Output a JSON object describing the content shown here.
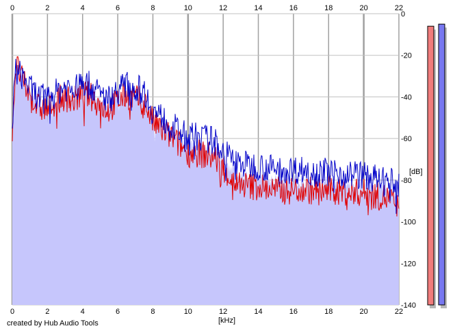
{
  "credit": "created by Hub Audio Tools",
  "chart_data": {
    "type": "area",
    "xlabel": "[kHz]",
    "ylabel": "[dB]",
    "xlim": [
      0,
      22
    ],
    "ylim": [
      -140,
      0
    ],
    "x_ticks": [
      "0",
      "2",
      "4",
      "6",
      "8",
      "10",
      "12",
      "14",
      "16",
      "18",
      "20",
      "22"
    ],
    "y_ticks": [
      "0",
      "-20",
      "-40",
      "-60",
      "-80",
      "-100",
      "-120",
      "-140"
    ],
    "grid": true,
    "colors": {
      "fill": "#c6c6fc",
      "left": "#e00000",
      "right": "#0000c8"
    },
    "envelope": {
      "x": [
        0,
        0.2,
        0.4,
        0.6,
        0.8,
        1,
        1.5,
        2,
        2.5,
        3,
        3.5,
        4,
        4.5,
        5,
        5.5,
        6,
        6.5,
        7,
        7.5,
        8,
        8.5,
        9,
        9.5,
        10,
        10.5,
        11,
        11.5,
        12,
        12.5,
        13,
        13.5,
        14,
        14.5,
        15,
        15.5,
        16,
        16.5,
        17,
        17.5,
        18,
        18.5,
        19,
        19.5,
        20,
        20.5,
        21,
        21.5,
        22
      ],
      "y": [
        -52,
        -28,
        -30,
        -32,
        -35,
        -38,
        -43,
        -44,
        -41,
        -38,
        -40,
        -36,
        -38,
        -42,
        -44,
        -40,
        -37,
        -39,
        -40,
        -50,
        -53,
        -56,
        -60,
        -63,
        -63,
        -64,
        -65,
        -70,
        -75,
        -77,
        -78,
        -78,
        -79,
        -80,
        -80,
        -80,
        -80,
        -81,
        -81,
        -81,
        -81,
        -82,
        -82,
        -82,
        -83,
        -84,
        -85,
        -86
      ]
    },
    "series": [
      {
        "channel": "left",
        "x": [
          0,
          0.2,
          0.4,
          0.6,
          0.8,
          1,
          1.5,
          2,
          2.5,
          3,
          3.5,
          4,
          4.5,
          5,
          5.5,
          6,
          6.5,
          7,
          7.5,
          8,
          8.5,
          9,
          9.5,
          10,
          10.5,
          11,
          11.5,
          12,
          12.5,
          13,
          13.5,
          14,
          14.5,
          15,
          15.5,
          16,
          16.5,
          17,
          17.5,
          18,
          18.5,
          19,
          19.5,
          20,
          20.5,
          21,
          21.5,
          22
        ],
        "y": [
          -55,
          -25,
          -28,
          -33,
          -36,
          -40,
          -45,
          -46,
          -42,
          -40,
          -42,
          -38,
          -40,
          -44,
          -46,
          -42,
          -39,
          -41,
          -42,
          -52,
          -56,
          -59,
          -63,
          -67,
          -67,
          -68,
          -69,
          -74,
          -80,
          -82,
          -83,
          -83,
          -84,
          -85,
          -85,
          -85,
          -84,
          -85,
          -85,
          -85,
          -85,
          -86,
          -86,
          -86,
          -87,
          -88,
          -89,
          -94
        ]
      },
      {
        "channel": "right",
        "x": [
          0,
          0.2,
          0.4,
          0.6,
          0.8,
          1,
          1.5,
          2,
          2.5,
          3,
          3.5,
          4,
          4.5,
          5,
          5.5,
          6,
          6.5,
          7,
          7.5,
          8,
          8.5,
          9,
          9.5,
          10,
          10.5,
          11,
          11.5,
          12,
          12.5,
          13,
          13.5,
          14,
          14.5,
          15,
          15.5,
          16,
          16.5,
          17,
          17.5,
          18,
          18.5,
          19,
          19.5,
          20,
          20.5,
          21,
          21.5,
          22
        ],
        "y": [
          -50,
          -27,
          -29,
          -30,
          -33,
          -36,
          -40,
          -41,
          -38,
          -35,
          -37,
          -33,
          -35,
          -39,
          -41,
          -37,
          -34,
          -36,
          -37,
          -47,
          -50,
          -53,
          -57,
          -59,
          -59,
          -60,
          -61,
          -66,
          -70,
          -72,
          -73,
          -73,
          -74,
          -75,
          -75,
          -75,
          -75,
          -76,
          -76,
          -76,
          -76,
          -77,
          -77,
          -78,
          -79,
          -80,
          -81,
          -82
        ]
      }
    ],
    "level_meters": [
      {
        "channel": "left",
        "color": "#f07c7c",
        "level_db": -6
      },
      {
        "channel": "right",
        "color": "#7878f0",
        "level_db": -5
      }
    ]
  }
}
